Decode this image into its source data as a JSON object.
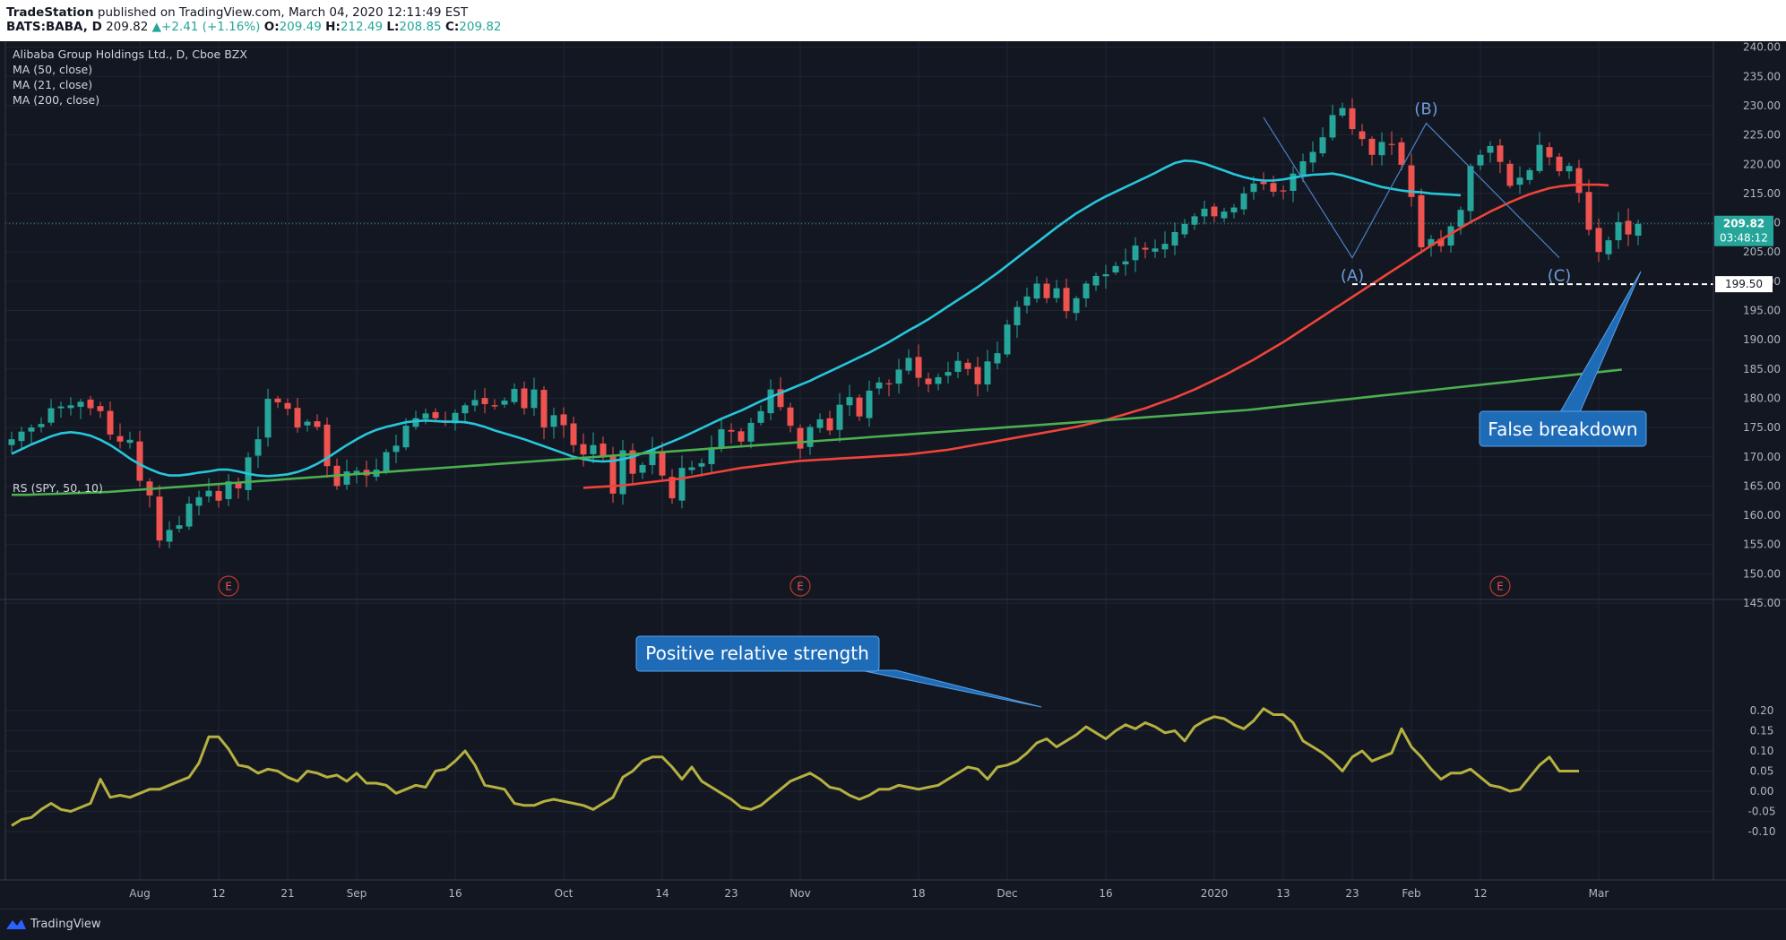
{
  "header": {
    "publisher": "TradeStation",
    "published_text": "published on TradingView.com, March 04, 2020 12:11:49 EST",
    "symbol": "BATS:BABA, D",
    "last": "209.82",
    "change": "+2.41 (+1.16%)",
    "o_label": "O:",
    "o": "209.49",
    "h_label": "H:",
    "h": "212.49",
    "l_label": "L:",
    "l": "208.85",
    "c_label": "C:",
    "c": "209.82"
  },
  "legend": {
    "title": "Alibaba Group Holdings Ltd., D, Cboe BZX",
    "ma50": "MA (50, close)",
    "ma21": "MA (21, close)",
    "ma200": "MA (200, close)",
    "rs": "RS (SPY, 50, 10)"
  },
  "price_tag": {
    "price": "209.82",
    "countdown": "03:48:12",
    "level": "199.50"
  },
  "annotations": {
    "false_breakdown": "False breakdown",
    "positive_rs": "Positive relative strength",
    "wave_a": "(A)",
    "wave_b": "(B)",
    "wave_c": "(C)",
    "earnings": "E"
  },
  "footer": {
    "brand": "TradingView"
  },
  "colors": {
    "background": "#131722",
    "up": "#26a69a",
    "down": "#ef5350",
    "ma21": "#26c6da",
    "ma50": "#f0433a",
    "ma200": "#4caf50",
    "rs": "#b5b040",
    "callout": "#1e6bb8"
  },
  "chart_data": [
    {
      "type": "candlestick",
      "title": "Alibaba Group Holdings Ltd., D, Cboe BZX",
      "ylim": [
        145,
        240
      ],
      "yticks": [
        "145.00",
        "150.00",
        "155.00",
        "160.00",
        "165.00",
        "170.00",
        "175.00",
        "180.00",
        "185.00",
        "190.00",
        "195.00",
        "200.00",
        "205.00",
        "210.00",
        "215.00",
        "220.00",
        "225.00",
        "230.00",
        "235.00",
        "240.00"
      ],
      "xticks": [
        {
          "label": "Aug",
          "i": 13
        },
        {
          "label": "12",
          "i": 21
        },
        {
          "label": "21",
          "i": 28
        },
        {
          "label": "Sep",
          "i": 35
        },
        {
          "label": "16",
          "i": 45
        },
        {
          "label": "Oct",
          "i": 56
        },
        {
          "label": "14",
          "i": 66
        },
        {
          "label": "23",
          "i": 73
        },
        {
          "label": "Nov",
          "i": 80
        },
        {
          "label": "18",
          "i": 92
        },
        {
          "label": "Dec",
          "i": 101
        },
        {
          "label": "16",
          "i": 111
        },
        {
          "label": "2020",
          "i": 122
        },
        {
          "label": "13",
          "i": 129
        },
        {
          "label": "23",
          "i": 136
        },
        {
          "label": "Feb",
          "i": 142
        },
        {
          "label": "12",
          "i": 149
        },
        {
          "label": "Mar",
          "i": 161
        }
      ],
      "earnings_at": [
        22,
        80,
        151
      ],
      "close": [
        173.0,
        174.3,
        175.0,
        175.6,
        178.3,
        178.6,
        178.8,
        179.4,
        178.3,
        177.8,
        173.8,
        172.6,
        172.9,
        165.9,
        163.4,
        155.7,
        157.5,
        158.3,
        162.0,
        163.1,
        164.2,
        162.5,
        165.8,
        164.6,
        169.9,
        173.0,
        179.9,
        179.3,
        178.2,
        175.0,
        176.0,
        175.1,
        168.4,
        165.0,
        167.5,
        167.6,
        166.8,
        167.8,
        170.8,
        171.9,
        175.3,
        176.6,
        177.4,
        176.6,
        175.8,
        177.5,
        178.8,
        179.7,
        179.0,
        178.6,
        179.6,
        181.6,
        178.3,
        181.5,
        175.0,
        177.1,
        175.4,
        172.0,
        170.4,
        172.0,
        169.9,
        163.7,
        171.1,
        167.1,
        168.6,
        171.2,
        166.8,
        162.9,
        168.1,
        168.2,
        168.9,
        171.6,
        174.7,
        174.3,
        172.6,
        175.8,
        177.8,
        181.5,
        178.5,
        175.3,
        171.4,
        175.1,
        176.4,
        174.5,
        178.9,
        180.2,
        176.9,
        181.3,
        182.7,
        182.4,
        184.9,
        186.9,
        183.5,
        182.4,
        183.6,
        184.5,
        186.4,
        185.0,
        182.4,
        186.3,
        187.7,
        192.6,
        195.6,
        197.4,
        199.6,
        197.1,
        198.8,
        194.9,
        197.1,
        199.6,
        200.9,
        201.2,
        202.6,
        203.4,
        206.1,
        205.4,
        205.6,
        206.4,
        208.4,
        209.8,
        211.1,
        212.4,
        211.1,
        211.9,
        212.6,
        215.0,
        216.7,
        216.6,
        215.3,
        215.5,
        218.4,
        220.5,
        222.1,
        224.6,
        228.4,
        229.6,
        226.0,
        224.3,
        221.6,
        223.8,
        223.4,
        219.9,
        214.4,
        205.8,
        207.2,
        206.0,
        209.4,
        212.2,
        219.7,
        221.6,
        223.1,
        220.4,
        216.3,
        217.7,
        219.0,
        223.3,
        221.2,
        218.8,
        219.7,
        215.1,
        208.8,
        205.0,
        207.0,
        210.1,
        208.0,
        209.8
      ],
      "series": [
        {
          "name": "MA (21, close)",
          "values": [
            170.5,
            171.3,
            172.1,
            172.8,
            173.5,
            174.0,
            174.2,
            174.0,
            173.6,
            172.9,
            172.0,
            170.9,
            169.7,
            168.7,
            167.9,
            167.2,
            166.8,
            166.8,
            167.0,
            167.3,
            167.5,
            167.8,
            167.8,
            167.5,
            167.1,
            166.8,
            166.7,
            166.8,
            167.0,
            167.4,
            168.0,
            168.8,
            169.8,
            170.9,
            172.0,
            173.0,
            173.9,
            174.6,
            175.1,
            175.5,
            175.9,
            176.1,
            176.2,
            176.1,
            176.0,
            176.0,
            175.9,
            175.6,
            175.1,
            174.5,
            174.0,
            173.5,
            173.0,
            172.4,
            171.8,
            171.2,
            170.6,
            170.0,
            169.6,
            169.3,
            169.2,
            169.3,
            169.6,
            170.0,
            170.6,
            171.2,
            171.9,
            172.6,
            173.3,
            174.1,
            174.9,
            175.7,
            176.5,
            177.2,
            177.9,
            178.7,
            179.5,
            180.2,
            180.9,
            181.6,
            182.3,
            183.0,
            183.8,
            184.6,
            185.4,
            186.2,
            187.0,
            187.8,
            188.7,
            189.6,
            190.6,
            191.6,
            192.5,
            193.5,
            194.6,
            195.7,
            196.8,
            197.9,
            199.0,
            200.2,
            201.4,
            202.7,
            204.0,
            205.3,
            206.6,
            207.9,
            209.2,
            210.4,
            211.6,
            212.6,
            213.6,
            214.5,
            215.3,
            216.1,
            216.9,
            217.7,
            218.5,
            219.4,
            220.2,
            220.6,
            220.5,
            220.1,
            219.5,
            218.9,
            218.3,
            217.8,
            217.4,
            217.2,
            217.2,
            217.4,
            217.7,
            218.0,
            218.2,
            218.3,
            218.4,
            218.1,
            217.6,
            217.1,
            216.6,
            216.1,
            215.8,
            215.5,
            215.3,
            215.2,
            215.0,
            214.9,
            214.8,
            214.7
          ],
          "start_index": 0
        },
        {
          "name": "MA (50, close)",
          "values": [
            164.7,
            164.8,
            164.9,
            165.0,
            165.1,
            165.3,
            165.5,
            165.7,
            165.9,
            166.1,
            166.3,
            166.6,
            166.9,
            167.2,
            167.5,
            167.8,
            168.1,
            168.3,
            168.5,
            168.7,
            168.9,
            169.1,
            169.3,
            169.4,
            169.5,
            169.6,
            169.7,
            169.8,
            169.9,
            170.0,
            170.1,
            170.2,
            170.3,
            170.4,
            170.6,
            170.8,
            171.0,
            171.2,
            171.5,
            171.8,
            172.1,
            172.4,
            172.7,
            173.0,
            173.3,
            173.6,
            173.9,
            174.2,
            174.5,
            174.8,
            175.1,
            175.5,
            175.9,
            176.3,
            176.8,
            177.3,
            177.8,
            178.3,
            178.9,
            179.5,
            180.1,
            180.8,
            181.5,
            182.3,
            183.1,
            183.9,
            184.8,
            185.7,
            186.6,
            187.6,
            188.6,
            189.6,
            190.7,
            191.8,
            192.9,
            194.0,
            195.1,
            196.2,
            197.3,
            198.4,
            199.5,
            200.6,
            201.7,
            202.8,
            203.9,
            205.0,
            206.1,
            207.1,
            208.1,
            209.1,
            210.1,
            211.0,
            211.9,
            212.7,
            213.5,
            214.2,
            214.9,
            215.4,
            215.9,
            216.2,
            216.4,
            216.5,
            216.5,
            216.5,
            216.4
          ],
          "start_index": 58
        },
        {
          "name": "MA (200, close)",
          "values": [
            163.5,
            163.5,
            163.6,
            163.7,
            163.8,
            163.9,
            164.0,
            164.2,
            164.4,
            164.6,
            164.8,
            165.0,
            165.2,
            165.4,
            165.6,
            165.8,
            166.0,
            166.2,
            166.4,
            166.6,
            166.8,
            167.0,
            167.2,
            167.4,
            167.6,
            167.8,
            168.0,
            168.2,
            168.4,
            168.6,
            168.8,
            169.0,
            169.2,
            169.4,
            169.6,
            169.8,
            170.0,
            170.2,
            170.4,
            170.6,
            170.8,
            171.0,
            171.2,
            171.4,
            171.6,
            171.8,
            172.0,
            172.2,
            172.4,
            172.6,
            172.8,
            173.0,
            173.2,
            173.4,
            173.6,
            173.8,
            174.0,
            174.2,
            174.4,
            174.6,
            174.8,
            175.0,
            175.2,
            175.4,
            175.6,
            175.8,
            176.0,
            176.2,
            176.4,
            176.6,
            176.8,
            177.0,
            177.2,
            177.4,
            177.6,
            177.8,
            178.0,
            178.3,
            178.6,
            178.9,
            179.2,
            179.5,
            179.8,
            180.1,
            180.4,
            180.7,
            181.0,
            181.3,
            181.6,
            181.9,
            182.2,
            182.5,
            182.8,
            183.1,
            183.4,
            183.7,
            184.0,
            184.3,
            184.6,
            184.9
          ],
          "start_index": 0,
          "step": 1.65
        }
      ]
    },
    {
      "type": "line",
      "title": "RS (SPY, 50, 10)",
      "ylim": [
        -0.1,
        0.2
      ],
      "yticks": [
        "-0.10",
        "-0.05",
        "0.00",
        "0.05",
        "0.10",
        "0.15",
        "0.20"
      ],
      "series": [
        {
          "name": "RS (SPY, 50, 10)",
          "values": [
            -0.085,
            -0.07,
            -0.065,
            -0.045,
            -0.03,
            -0.045,
            -0.05,
            -0.04,
            -0.03,
            0.03,
            -0.015,
            -0.01,
            -0.015,
            -0.005,
            0.005,
            0.005,
            0.015,
            0.025,
            0.035,
            0.07,
            0.135,
            0.135,
            0.105,
            0.065,
            0.06,
            0.045,
            0.055,
            0.05,
            0.035,
            0.025,
            0.05,
            0.045,
            0.035,
            0.04,
            0.025,
            0.045,
            0.02,
            0.02,
            0.015,
            -0.005,
            0.005,
            0.015,
            0.01,
            0.05,
            0.055,
            0.075,
            0.1,
            0.065,
            0.015,
            0.01,
            0.005,
            -0.03,
            -0.035,
            -0.035,
            -0.025,
            -0.02,
            -0.025,
            -0.03,
            -0.035,
            -0.045,
            -0.03,
            -0.015,
            0.035,
            0.05,
            0.075,
            0.085,
            0.085,
            0.06,
            0.03,
            0.06,
            0.025,
            0.01,
            -0.005,
            -0.02,
            -0.04,
            -0.045,
            -0.035,
            -0.015,
            0.005,
            0.025,
            0.035,
            0.045,
            0.03,
            0.01,
            0.005,
            -0.01,
            -0.02,
            -0.01,
            0.005,
            0.005,
            0.015,
            0.01,
            0.005,
            0.01,
            0.015,
            0.03,
            0.045,
            0.06,
            0.055,
            0.03,
            0.06,
            0.065,
            0.075,
            0.095,
            0.12,
            0.13,
            0.11,
            0.125,
            0.14,
            0.16,
            0.145,
            0.13,
            0.15,
            0.165,
            0.155,
            0.17,
            0.16,
            0.145,
            0.15,
            0.125,
            0.16,
            0.175,
            0.185,
            0.18,
            0.165,
            0.155,
            0.175,
            0.205,
            0.19,
            0.19,
            0.17,
            0.125,
            0.11,
            0.095,
            0.075,
            0.05,
            0.085,
            0.1,
            0.075,
            0.085,
            0.095,
            0.155,
            0.11,
            0.085,
            0.055,
            0.03,
            0.045,
            0.045,
            0.055,
            0.035,
            0.015,
            0.01,
            0.0,
            0.005,
            0.035,
            0.065,
            0.085,
            0.05,
            0.05,
            0.05
          ]
        }
      ]
    }
  ]
}
